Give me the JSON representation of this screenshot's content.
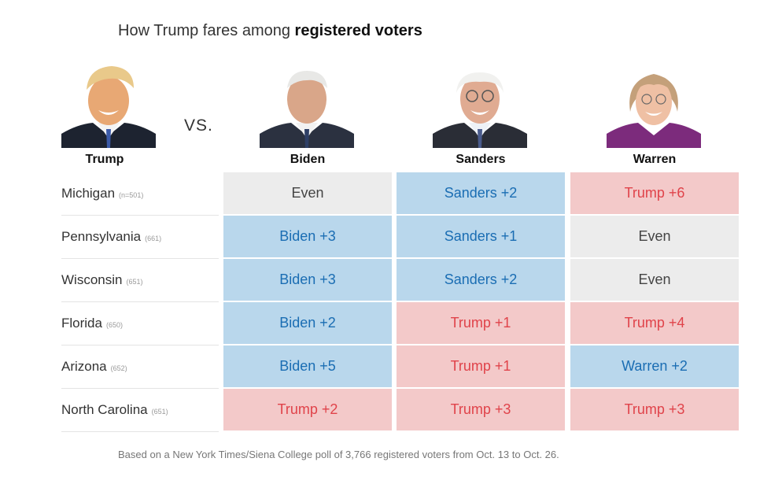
{
  "title": {
    "prefix": "How Trump fares among ",
    "bold": "registered voters"
  },
  "vs_label": "VS.",
  "candidates": {
    "trump": "Trump",
    "biden": "Biden",
    "sanders": "Sanders",
    "warren": "Warren"
  },
  "footnote": "Based on a New York Times/Siena College poll of 3,766 registered voters from Oct. 13 to Oct. 26.",
  "colors": {
    "dem_fill": "#b9d7ec",
    "dem_text": "#1a6db3",
    "rep_fill": "#f3c9c9",
    "rep_text": "#e0434a",
    "even_fill": "#ececec"
  },
  "chart_data": {
    "type": "table",
    "columns": [
      "Biden",
      "Sanders",
      "Warren"
    ],
    "rows": [
      {
        "state": "Michigan",
        "n": "(n=501)",
        "cells": [
          {
            "text": "Even",
            "leader": "even"
          },
          {
            "text": "Sanders +2",
            "leader": "dem"
          },
          {
            "text": "Trump +6",
            "leader": "rep"
          }
        ]
      },
      {
        "state": "Pennsylvania",
        "n": "(661)",
        "cells": [
          {
            "text": "Biden +3",
            "leader": "dem"
          },
          {
            "text": "Sanders +1",
            "leader": "dem"
          },
          {
            "text": "Even",
            "leader": "even"
          }
        ]
      },
      {
        "state": "Wisconsin",
        "n": "(651)",
        "cells": [
          {
            "text": "Biden +3",
            "leader": "dem"
          },
          {
            "text": "Sanders +2",
            "leader": "dem"
          },
          {
            "text": "Even",
            "leader": "even"
          }
        ]
      },
      {
        "state": "Florida",
        "n": "(650)",
        "cells": [
          {
            "text": "Biden +2",
            "leader": "dem"
          },
          {
            "text": "Trump +1",
            "leader": "rep"
          },
          {
            "text": "Trump +4",
            "leader": "rep"
          }
        ]
      },
      {
        "state": "Arizona",
        "n": "(652)",
        "cells": [
          {
            "text": "Biden +5",
            "leader": "dem"
          },
          {
            "text": "Trump +1",
            "leader": "rep"
          },
          {
            "text": "Warren +2",
            "leader": "dem"
          }
        ]
      },
      {
        "state": "North Carolina",
        "n": "(651)",
        "cells": [
          {
            "text": "Trump +2",
            "leader": "rep"
          },
          {
            "text": "Trump +3",
            "leader": "rep"
          },
          {
            "text": "Trump +3",
            "leader": "rep"
          }
        ]
      }
    ]
  }
}
